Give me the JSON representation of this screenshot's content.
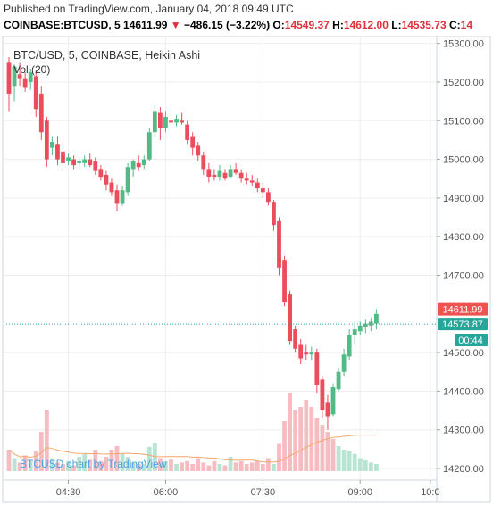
{
  "header": {
    "published": "Published on TradingView.com, January 04, 2018 09:49 UTC",
    "symbol": "COINBASE:BTCUSD, 5",
    "last": "14611.99",
    "change_arrow": "▼",
    "change": "−486.15 (−3.22%)",
    "o_label": "O:",
    "o_value": "14549.37",
    "h_label": "H:",
    "h_value": "14612.00",
    "l_label": "L:",
    "l_value": "14535.73",
    "c_label": "C:",
    "c_value": "14"
  },
  "chart_data": {
    "type": "candlestick",
    "title": "BTC/USD, 5, COINBASE, Heikin Ashi",
    "volume_label": "Vol (20)",
    "watermark": "BTCUSD chart by TradingView",
    "ylim": [
      14170,
      15320
    ],
    "y_ticks": [
      {
        "value": 15300,
        "label": "15300.00"
      },
      {
        "value": 15200,
        "label": "15200.00"
      },
      {
        "value": 15100,
        "label": "15100.00"
      },
      {
        "value": 15000,
        "label": "15000.00"
      },
      {
        "value": 14900,
        "label": "14900.00"
      },
      {
        "value": 14800,
        "label": "14800.00"
      },
      {
        "value": 14700,
        "label": "14700.00"
      },
      {
        "value": 14500,
        "label": "14500.00"
      },
      {
        "value": 14400,
        "label": "14400.00"
      },
      {
        "value": 14300,
        "label": "14300.00"
      },
      {
        "value": 14200,
        "label": "14200.00"
      }
    ],
    "x_ticks": [
      {
        "index": 11,
        "label": "04:30"
      },
      {
        "index": 29,
        "label": "06:00"
      },
      {
        "index": 47,
        "label": "07:30"
      },
      {
        "index": 65,
        "label": "09:00"
      },
      {
        "index": 78,
        "label": "10:0"
      }
    ],
    "price_label": {
      "value": 14611.99,
      "label": "14611.99",
      "color": "#ef5350"
    },
    "ma_label": {
      "value": 14573.87,
      "label": "14573.87",
      "color": "#26a69a"
    },
    "countdown": "00:44",
    "colors": {
      "up": "#53b987",
      "down": "#eb4d5c",
      "vol_up": "#b8e4d4",
      "vol_down": "#f6bcc1",
      "vol_ma": "#f5a96b",
      "grid": "#eeeeee"
    },
    "candles": [
      {
        "o": 15250,
        "h": 15265,
        "l": 15125,
        "c": 15170
      },
      {
        "o": 15190,
        "h": 15245,
        "l": 15150,
        "c": 15240
      },
      {
        "o": 15220,
        "h": 15250,
        "l": 15190,
        "c": 15210
      },
      {
        "o": 15210,
        "h": 15225,
        "l": 15175,
        "c": 15185
      },
      {
        "o": 15200,
        "h": 15235,
        "l": 15180,
        "c": 15225
      },
      {
        "o": 15215,
        "h": 15230,
        "l": 15110,
        "c": 15130
      },
      {
        "o": 15170,
        "h": 15190,
        "l": 15050,
        "c": 15070
      },
      {
        "o": 15100,
        "h": 15110,
        "l": 14980,
        "c": 15000
      },
      {
        "o": 15030,
        "h": 15060,
        "l": 15010,
        "c": 15045
      },
      {
        "o": 15040,
        "h": 15060,
        "l": 14985,
        "c": 15000
      },
      {
        "o": 15020,
        "h": 15030,
        "l": 14975,
        "c": 14990
      },
      {
        "o": 14995,
        "h": 15015,
        "l": 14985,
        "c": 15005
      },
      {
        "o": 15000,
        "h": 15010,
        "l": 14975,
        "c": 14985
      },
      {
        "o": 14990,
        "h": 15005,
        "l": 14975,
        "c": 14995
      },
      {
        "o": 14990,
        "h": 15010,
        "l": 14980,
        "c": 15000
      },
      {
        "o": 15000,
        "h": 15015,
        "l": 14980,
        "c": 14985
      },
      {
        "o": 14995,
        "h": 15005,
        "l": 14960,
        "c": 14970
      },
      {
        "o": 14975,
        "h": 14985,
        "l": 14945,
        "c": 14955
      },
      {
        "o": 14960,
        "h": 14970,
        "l": 14920,
        "c": 14935
      },
      {
        "o": 14940,
        "h": 14950,
        "l": 14905,
        "c": 14915
      },
      {
        "o": 14920,
        "h": 14935,
        "l": 14865,
        "c": 14885
      },
      {
        "o": 14885,
        "h": 14930,
        "l": 14880,
        "c": 14920
      },
      {
        "o": 14915,
        "h": 14990,
        "l": 14905,
        "c": 14980
      },
      {
        "o": 14975,
        "h": 15000,
        "l": 14955,
        "c": 14995
      },
      {
        "o": 14990,
        "h": 15010,
        "l": 14970,
        "c": 14980
      },
      {
        "o": 14985,
        "h": 15010,
        "l": 14975,
        "c": 15000
      },
      {
        "o": 15000,
        "h": 15080,
        "l": 14995,
        "c": 15070
      },
      {
        "o": 15070,
        "h": 15140,
        "l": 15060,
        "c": 15125
      },
      {
        "o": 15120,
        "h": 15135,
        "l": 15050,
        "c": 15080
      },
      {
        "o": 15080,
        "h": 15125,
        "l": 15070,
        "c": 15110
      },
      {
        "o": 15100,
        "h": 15120,
        "l": 15085,
        "c": 15095
      },
      {
        "o": 15095,
        "h": 15115,
        "l": 15085,
        "c": 15105
      },
      {
        "o": 15100,
        "h": 15120,
        "l": 15090,
        "c": 15095
      },
      {
        "o": 15090,
        "h": 15100,
        "l": 15040,
        "c": 15050
      },
      {
        "o": 15060,
        "h": 15070,
        "l": 15010,
        "c": 15030
      },
      {
        "o": 15035,
        "h": 15045,
        "l": 14995,
        "c": 15010
      },
      {
        "o": 15010,
        "h": 15020,
        "l": 14960,
        "c": 14975
      },
      {
        "o": 14975,
        "h": 14990,
        "l": 14940,
        "c": 14955
      },
      {
        "o": 14960,
        "h": 14975,
        "l": 14945,
        "c": 14955
      },
      {
        "o": 14955,
        "h": 14985,
        "l": 14945,
        "c": 14970
      },
      {
        "o": 14965,
        "h": 14975,
        "l": 14945,
        "c": 14950
      },
      {
        "o": 14955,
        "h": 14985,
        "l": 14950,
        "c": 14975
      },
      {
        "o": 14975,
        "h": 14990,
        "l": 14960,
        "c": 14965
      },
      {
        "o": 14965,
        "h": 14975,
        "l": 14940,
        "c": 14950
      },
      {
        "o": 14950,
        "h": 14965,
        "l": 14935,
        "c": 14945
      },
      {
        "o": 14945,
        "h": 14960,
        "l": 14930,
        "c": 14940
      },
      {
        "o": 14940,
        "h": 14950,
        "l": 14915,
        "c": 14925
      },
      {
        "o": 14925,
        "h": 14940,
        "l": 14900,
        "c": 14915
      },
      {
        "o": 14915,
        "h": 14925,
        "l": 14880,
        "c": 14890
      },
      {
        "o": 14890,
        "h": 14895,
        "l": 14815,
        "c": 14830
      },
      {
        "o": 14840,
        "h": 14850,
        "l": 14700,
        "c": 14720
      },
      {
        "o": 14740,
        "h": 14750,
        "l": 14620,
        "c": 14630
      },
      {
        "o": 14650,
        "h": 14660,
        "l": 14520,
        "c": 14530
      },
      {
        "o": 14560,
        "h": 14570,
        "l": 14500,
        "c": 14510
      },
      {
        "o": 14520,
        "h": 14535,
        "l": 14470,
        "c": 14485
      },
      {
        "o": 14500,
        "h": 14520,
        "l": 14480,
        "c": 14495
      },
      {
        "o": 14495,
        "h": 14515,
        "l": 14480,
        "c": 14500
      },
      {
        "o": 14500,
        "h": 14510,
        "l": 14395,
        "c": 14415
      },
      {
        "o": 14430,
        "h": 14440,
        "l": 14330,
        "c": 14350
      },
      {
        "o": 14370,
        "h": 14390,
        "l": 14300,
        "c": 14335
      },
      {
        "o": 14340,
        "h": 14420,
        "l": 14335,
        "c": 14410
      },
      {
        "o": 14405,
        "h": 14460,
        "l": 14400,
        "c": 14450
      },
      {
        "o": 14450,
        "h": 14510,
        "l": 14440,
        "c": 14495
      },
      {
        "o": 14490,
        "h": 14560,
        "l": 14480,
        "c": 14545
      },
      {
        "o": 14545,
        "h": 14580,
        "l": 14520,
        "c": 14560
      },
      {
        "o": 14555,
        "h": 14580,
        "l": 14545,
        "c": 14570
      },
      {
        "o": 14565,
        "h": 14585,
        "l": 14550,
        "c": 14575
      },
      {
        "o": 14570,
        "h": 14590,
        "l": 14555,
        "c": 14580
      },
      {
        "o": 14575,
        "h": 14612,
        "l": 14560,
        "c": 14600
      }
    ],
    "volumes": [
      {
        "v": 30,
        "up": false
      },
      {
        "v": 18,
        "up": true
      },
      {
        "v": 12,
        "up": false
      },
      {
        "v": 22,
        "up": false
      },
      {
        "v": 15,
        "up": true
      },
      {
        "v": 28,
        "up": false
      },
      {
        "v": 55,
        "up": false
      },
      {
        "v": 85,
        "up": false
      },
      {
        "v": 18,
        "up": true
      },
      {
        "v": 12,
        "up": false
      },
      {
        "v": 10,
        "up": false
      },
      {
        "v": 14,
        "up": true
      },
      {
        "v": 8,
        "up": false
      },
      {
        "v": 20,
        "up": true
      },
      {
        "v": 24,
        "up": true
      },
      {
        "v": 16,
        "up": false
      },
      {
        "v": 30,
        "up": false
      },
      {
        "v": 14,
        "up": false
      },
      {
        "v": 20,
        "up": false
      },
      {
        "v": 30,
        "up": false
      },
      {
        "v": 35,
        "up": false
      },
      {
        "v": 25,
        "up": true
      },
      {
        "v": 20,
        "up": true
      },
      {
        "v": 12,
        "up": true
      },
      {
        "v": 10,
        "up": false
      },
      {
        "v": 10,
        "up": true
      },
      {
        "v": 34,
        "up": true
      },
      {
        "v": 40,
        "up": true
      },
      {
        "v": 18,
        "up": false
      },
      {
        "v": 14,
        "up": true
      },
      {
        "v": 16,
        "up": false
      },
      {
        "v": 10,
        "up": true
      },
      {
        "v": 12,
        "up": false
      },
      {
        "v": 14,
        "up": false
      },
      {
        "v": 10,
        "up": false
      },
      {
        "v": 18,
        "up": false
      },
      {
        "v": 12,
        "up": false
      },
      {
        "v": 8,
        "up": false
      },
      {
        "v": 14,
        "up": false
      },
      {
        "v": 10,
        "up": true
      },
      {
        "v": 8,
        "up": false
      },
      {
        "v": 20,
        "up": true
      },
      {
        "v": 12,
        "up": false
      },
      {
        "v": 14,
        "up": false
      },
      {
        "v": 10,
        "up": false
      },
      {
        "v": 12,
        "up": false
      },
      {
        "v": 14,
        "up": false
      },
      {
        "v": 10,
        "up": false
      },
      {
        "v": 18,
        "up": false
      },
      {
        "v": 10,
        "up": true
      },
      {
        "v": 38,
        "up": false
      },
      {
        "v": 70,
        "up": false
      },
      {
        "v": 110,
        "up": false
      },
      {
        "v": 85,
        "up": false
      },
      {
        "v": 90,
        "up": false
      },
      {
        "v": 100,
        "up": false
      },
      {
        "v": 90,
        "up": false
      },
      {
        "v": 75,
        "up": false
      },
      {
        "v": 65,
        "up": false
      },
      {
        "v": 55,
        "up": false
      },
      {
        "v": 45,
        "up": false
      },
      {
        "v": 35,
        "up": true
      },
      {
        "v": 30,
        "up": true
      },
      {
        "v": 28,
        "up": true
      },
      {
        "v": 24,
        "up": true
      },
      {
        "v": 18,
        "up": true
      },
      {
        "v": 15,
        "up": true
      },
      {
        "v": 12,
        "up": true
      },
      {
        "v": 10,
        "up": true
      }
    ]
  }
}
